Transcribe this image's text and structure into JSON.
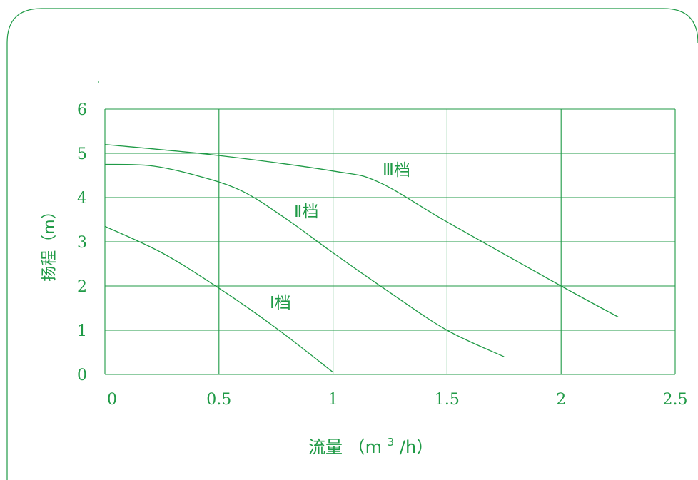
{
  "chart_data": {
    "type": "line",
    "title": "",
    "xlabel": "流量",
    "xlabel_unit_open": "（m",
    "xlabel_unit_sup": "3",
    "xlabel_unit_close": "/h）",
    "ylabel": "扬程（m）",
    "xlim": [
      0,
      2.5
    ],
    "ylim": [
      0,
      6
    ],
    "xticks": [
      "0",
      "0.5",
      "1",
      "1.5",
      "2",
      "2.5"
    ],
    "yticks": [
      "0",
      "1",
      "2",
      "3",
      "4",
      "5",
      "6"
    ],
    "grid": true,
    "series": [
      {
        "name": "Ⅰ档",
        "x": [
          0,
          0.25,
          0.5,
          0.75,
          1.0
        ],
        "y": [
          3.35,
          2.75,
          1.95,
          1.05,
          0.05
        ]
      },
      {
        "name": "Ⅱ档",
        "x": [
          0,
          0.2,
          0.4,
          0.6,
          0.8,
          1.0,
          1.25,
          1.5,
          1.75
        ],
        "y": [
          4.75,
          4.72,
          4.5,
          4.15,
          3.5,
          2.75,
          1.85,
          1.0,
          0.4
        ]
      },
      {
        "name": "Ⅲ档",
        "x": [
          0,
          0.5,
          1.0,
          1.2,
          1.5,
          2.0,
          2.25
        ],
        "y": [
          5.2,
          4.95,
          4.6,
          4.35,
          3.45,
          2.0,
          1.3
        ]
      }
    ]
  },
  "colors": {
    "line": "#1f9a46",
    "text": "#1f9a46"
  }
}
